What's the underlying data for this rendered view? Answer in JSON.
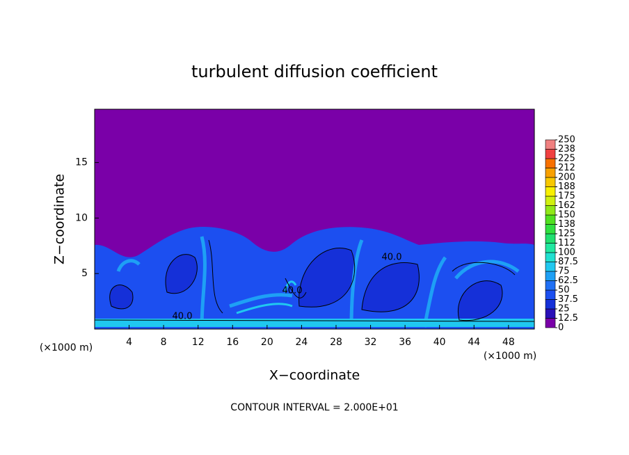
{
  "chart_data": {
    "type": "contour",
    "title": "turbulent diffusion coefficient",
    "x_label": "X−coordinate",
    "y_label": "Z−coordinate",
    "x_unit": "(×1000 m)",
    "y_unit": "(×1000 m)",
    "xlim": [
      0,
      51
    ],
    "ylim": [
      0,
      19.8
    ],
    "xticks": [
      4,
      8,
      12,
      16,
      20,
      24,
      28,
      32,
      36,
      40,
      44,
      48
    ],
    "yticks": [
      5,
      10,
      15
    ],
    "contour_labels": [
      "40.0",
      "40.0",
      "40.0"
    ],
    "footer": "CONTOUR INTERVAL = 2.000E+01",
    "colorbar": {
      "ticks": [
        0,
        12.5,
        25,
        37.5,
        50,
        62.5,
        75,
        87.5,
        100,
        {
          "value": 112.5,
          "label": "112"
        },
        125,
        {
          "value": 137.5,
          "label": "138"
        },
        150,
        {
          "value": 162.5,
          "label": "162"
        },
        175,
        {
          "value": 187.5,
          "label": "188"
        },
        200,
        {
          "value": 212.5,
          "label": "212"
        },
        225,
        {
          "value": 237.5,
          "label": "238"
        },
        250
      ],
      "colors": [
        "#7a00a8",
        "#2a10b8",
        "#1530d8",
        "#1c4ff0",
        "#2070f5",
        "#1ea0f5",
        "#20c8f0",
        "#20e0d0",
        "#20e8a0",
        "#20e070",
        "#30e040",
        "#50e020",
        "#90e818",
        "#d0f010",
        "#f8f000",
        "#f8c800",
        "#f8a000",
        "#f87000",
        "#f04040",
        "#f08080"
      ]
    }
  }
}
